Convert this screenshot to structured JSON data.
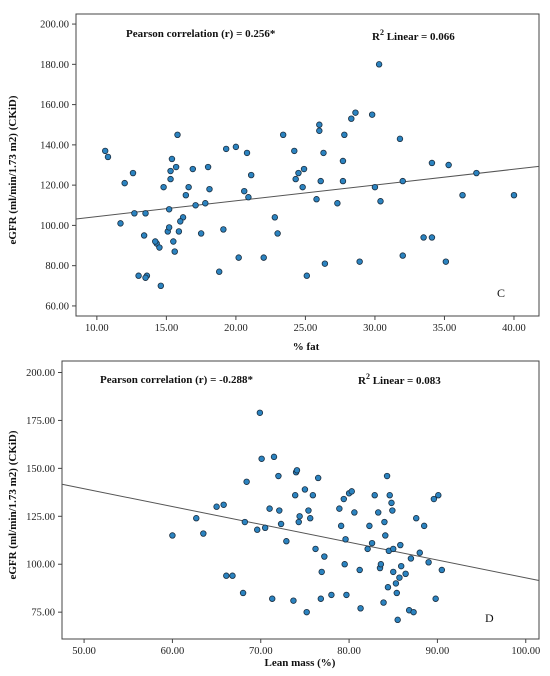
{
  "colors": {
    "point_fill": "#2b83c0",
    "point_stroke": "#1a2e40",
    "frame": "#444444",
    "fit_line": "#555555"
  },
  "chart_data": [
    {
      "type": "scatter",
      "panel_label": "C",
      "xlabel": "% fat",
      "ylabel": "eGFR (ml/min/1.73 m2) (CKiD)",
      "xlim": [
        8.5,
        41.8
      ],
      "ylim": [
        55,
        205
      ],
      "xticks": [
        10,
        15,
        20,
        25,
        30,
        35,
        40
      ],
      "xtick_labels": [
        "10.00",
        "15.00",
        "20.00",
        "25.00",
        "30.00",
        "35.00",
        "40.00"
      ],
      "yticks": [
        60,
        80,
        100,
        120,
        140,
        160,
        180,
        200
      ],
      "ytick_labels": [
        "60.00",
        "80.00",
        "100.00",
        "120.00",
        "140.00",
        "160.00",
        "180.00",
        "200.00"
      ],
      "grid": false,
      "annotations": {
        "pearson": "Pearson correlation (r) = 0.256*",
        "r2_prefix": "R",
        "r2_sup": "2",
        "r2_suffix": " Linear = 0.066"
      },
      "fit_line": {
        "x": [
          8.5,
          41.8
        ],
        "y": [
          103.2,
          129.3
        ]
      },
      "points": [
        [
          10.6,
          137
        ],
        [
          10.8,
          134
        ],
        [
          11.7,
          101
        ],
        [
          12.0,
          121
        ],
        [
          12.6,
          126
        ],
        [
          12.7,
          106
        ],
        [
          13.0,
          75
        ],
        [
          13.4,
          95
        ],
        [
          13.5,
          106
        ],
        [
          13.6,
          75
        ],
        [
          13.5,
          74
        ],
        [
          14.3,
          91
        ],
        [
          14.5,
          89
        ],
        [
          14.6,
          70
        ],
        [
          14.8,
          119
        ],
        [
          15.1,
          97
        ],
        [
          15.2,
          99
        ],
        [
          15.2,
          108
        ],
        [
          15.3,
          123
        ],
        [
          15.3,
          127
        ],
        [
          15.4,
          133
        ],
        [
          15.5,
          92
        ],
        [
          15.6,
          87
        ],
        [
          15.7,
          129
        ],
        [
          15.8,
          145
        ],
        [
          15.9,
          97
        ],
        [
          16.2,
          104
        ],
        [
          16.4,
          115
        ],
        [
          16.6,
          119
        ],
        [
          16.9,
          128
        ],
        [
          17.1,
          110
        ],
        [
          17.5,
          96
        ],
        [
          17.8,
          111
        ],
        [
          18.0,
          129
        ],
        [
          18.1,
          118
        ],
        [
          18.8,
          77
        ],
        [
          19.1,
          98
        ],
        [
          19.3,
          138
        ],
        [
          20.0,
          139
        ],
        [
          20.2,
          84
        ],
        [
          20.6,
          117
        ],
        [
          20.8,
          136
        ],
        [
          20.9,
          114
        ],
        [
          21.1,
          125
        ],
        [
          22.0,
          84
        ],
        [
          22.8,
          104
        ],
        [
          23.0,
          96
        ],
        [
          23.4,
          145
        ],
        [
          24.2,
          137
        ],
        [
          24.3,
          123
        ],
        [
          24.5,
          126
        ],
        [
          24.8,
          119
        ],
        [
          24.9,
          128
        ],
        [
          25.1,
          75
        ],
        [
          25.8,
          113
        ],
        [
          26.0,
          147
        ],
        [
          26.0,
          150
        ],
        [
          26.1,
          122
        ],
        [
          26.3,
          136
        ],
        [
          26.4,
          81
        ],
        [
          27.3,
          111
        ],
        [
          27.7,
          122
        ],
        [
          27.7,
          132
        ],
        [
          27.8,
          145
        ],
        [
          28.3,
          153
        ],
        [
          28.6,
          156
        ],
        [
          28.9,
          82
        ],
        [
          29.8,
          155
        ],
        [
          30.0,
          119
        ],
        [
          30.3,
          180
        ],
        [
          30.4,
          112
        ],
        [
          31.8,
          143
        ],
        [
          32.0,
          122
        ],
        [
          32.0,
          85
        ],
        [
          33.5,
          94
        ],
        [
          34.1,
          94
        ],
        [
          34.1,
          131
        ],
        [
          35.1,
          82
        ],
        [
          35.3,
          130
        ],
        [
          36.3,
          115
        ],
        [
          37.3,
          126
        ],
        [
          40.0,
          115
        ],
        [
          16.0,
          102
        ],
        [
          14.2,
          92
        ]
      ]
    },
    {
      "type": "scatter",
      "panel_label": "D",
      "xlabel": "Lean mass (%)",
      "ylabel": "eGFR (ml/min/1.73 m2) (CKiD)",
      "xlim": [
        47.5,
        101.5
      ],
      "ylim": [
        61,
        206
      ],
      "xticks": [
        50,
        60,
        70,
        80,
        90,
        100
      ],
      "xtick_labels": [
        "50.00",
        "60.00",
        "70.00",
        "80.00",
        "90.00",
        "100.00"
      ],
      "yticks": [
        75,
        100,
        125,
        150,
        175,
        200
      ],
      "ytick_labels": [
        "75.00",
        "100.00",
        "125.00",
        "150.00",
        "175.00",
        "200.00"
      ],
      "grid": false,
      "annotations": {
        "pearson": "Pearson correlation (r) = -0.288*",
        "r2_prefix": "R",
        "r2_sup": "2",
        "r2_suffix": " Linear = 0.083"
      },
      "fit_line": {
        "x": [
          47.5,
          101.5
        ],
        "y": [
          141.7,
          91.5
        ]
      },
      "points": [
        [
          60.0,
          115
        ],
        [
          62.7,
          124
        ],
        [
          63.5,
          116
        ],
        [
          65.0,
          130
        ],
        [
          65.8,
          131
        ],
        [
          66.1,
          94
        ],
        [
          66.8,
          94
        ],
        [
          68.0,
          85
        ],
        [
          68.2,
          122
        ],
        [
          68.4,
          143
        ],
        [
          69.6,
          118
        ],
        [
          69.9,
          179
        ],
        [
          70.1,
          155
        ],
        [
          70.5,
          119
        ],
        [
          71.0,
          129
        ],
        [
          71.3,
          82
        ],
        [
          71.5,
          156
        ],
        [
          72.0,
          146
        ],
        [
          72.1,
          128
        ],
        [
          72.3,
          121
        ],
        [
          72.9,
          112
        ],
        [
          73.7,
          81
        ],
        [
          73.9,
          136
        ],
        [
          74.0,
          148
        ],
        [
          74.1,
          149
        ],
        [
          74.3,
          122
        ],
        [
          74.4,
          125
        ],
        [
          75.0,
          139
        ],
        [
          75.2,
          75
        ],
        [
          75.4,
          128
        ],
        [
          75.6,
          124
        ],
        [
          75.9,
          136
        ],
        [
          76.2,
          108
        ],
        [
          76.5,
          145
        ],
        [
          76.8,
          82
        ],
        [
          76.9,
          96
        ],
        [
          77.2,
          104
        ],
        [
          78.0,
          84
        ],
        [
          78.9,
          129
        ],
        [
          79.1,
          120
        ],
        [
          79.4,
          134
        ],
        [
          79.5,
          100
        ],
        [
          79.6,
          113
        ],
        [
          79.7,
          84
        ],
        [
          80.0,
          137
        ],
        [
          80.3,
          138
        ],
        [
          80.6,
          127
        ],
        [
          81.2,
          97
        ],
        [
          81.3,
          77
        ],
        [
          82.1,
          108
        ],
        [
          82.3,
          120
        ],
        [
          82.6,
          111
        ],
        [
          82.9,
          136
        ],
        [
          83.3,
          127
        ],
        [
          83.5,
          98
        ],
        [
          83.6,
          100
        ],
        [
          83.9,
          80
        ],
        [
          84.1,
          115
        ],
        [
          84.3,
          146
        ],
        [
          84.4,
          88
        ],
        [
          84.5,
          107
        ],
        [
          84.6,
          136
        ],
        [
          84.8,
          132
        ],
        [
          84.9,
          128
        ],
        [
          85.0,
          96
        ],
        [
          85.0,
          108
        ],
        [
          85.3,
          90
        ],
        [
          85.4,
          85
        ],
        [
          85.5,
          71
        ],
        [
          85.7,
          93
        ],
        [
          85.8,
          110
        ],
        [
          85.9,
          99
        ],
        [
          86.4,
          95
        ],
        [
          86.8,
          76
        ],
        [
          87.0,
          103
        ],
        [
          87.3,
          75
        ],
        [
          87.6,
          124
        ],
        [
          88.0,
          106
        ],
        [
          88.5,
          120
        ],
        [
          89.0,
          101
        ],
        [
          89.6,
          134
        ],
        [
          89.8,
          82
        ],
        [
          90.1,
          136
        ],
        [
          90.5,
          97
        ],
        [
          84.0,
          122
        ]
      ]
    }
  ]
}
